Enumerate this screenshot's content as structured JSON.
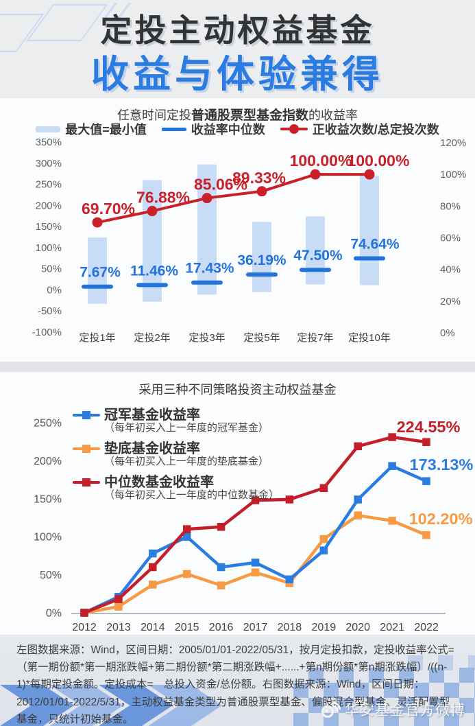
{
  "header": {
    "title_line1": "定投主动权益基金",
    "title_line2": "收益与体验兼得"
  },
  "chart_data": [
    {
      "type": "bar",
      "subtype": "range-bar + median tick + line (dual axis)",
      "title": "任意时间定投普通股票型基金指数的收益率",
      "title_parts": {
        "prefix": "任意时间定投",
        "bold": "普通股票型基金指数",
        "suffix": "的收益率"
      },
      "categories": [
        "定投1年",
        "定投2年",
        "定投3年",
        "定投5年",
        "定投7年",
        "定投10年"
      ],
      "left_axis": {
        "min": -100,
        "max": 350,
        "step": 50,
        "ticks": [
          "350%",
          "300%",
          "250%",
          "200%",
          "150%",
          "100%",
          "50%",
          "0%",
          "-50%",
          "-100%"
        ]
      },
      "right_axis": {
        "min": 0,
        "max": 120,
        "step": 20,
        "ticks": [
          "120%",
          "100%",
          "80%",
          "60%",
          "40%",
          "20%",
          "0%"
        ]
      },
      "series": [
        {
          "name": "最大值=最小值",
          "type": "range-bar",
          "axis": "left",
          "color": "#c9dcf5",
          "low": [
            -33,
            -28,
            -11,
            -5,
            13,
            11
          ],
          "high": [
            124,
            260,
            297,
            161,
            174,
            270
          ]
        },
        {
          "name": "收益率中位数",
          "type": "tick",
          "axis": "left",
          "color": "#2273dc",
          "values": [
            7.67,
            11.46,
            17.43,
            36.19,
            47.5,
            74.64
          ],
          "labels": [
            "7.67%",
            "11.46%",
            "17.43%",
            "36.19%",
            "47.50%",
            "74.64%"
          ]
        },
        {
          "name": "正收益次数/总定投次数",
          "type": "line",
          "axis": "right",
          "color": "#c9202a",
          "values": [
            69.7,
            76.88,
            85.06,
            89.33,
            100.0,
            100.0
          ],
          "labels": [
            "69.70%",
            "76.88%",
            "85.06%",
            "89.33%",
            "100.00%",
            "100.00%"
          ]
        }
      ]
    },
    {
      "type": "line",
      "title": "采用三种不同策略投资主动权益基金",
      "x": [
        "2012",
        "2013",
        "2014",
        "2015",
        "2016",
        "2017",
        "2018",
        "2019",
        "2020",
        "2021",
        "2022"
      ],
      "y_axis": {
        "min": 0,
        "max": 250,
        "step": 50,
        "ticks": [
          "0%",
          "50%",
          "100%",
          "150%",
          "200%",
          "250%"
        ]
      },
      "legend_position": "top-left overlay",
      "series": [
        {
          "name": "冠军基金收益率",
          "caption": "（每年初买入上一年度的冠军基金）",
          "color": "#2b7ce0",
          "values": [
            0,
            21,
            78,
            100,
            60,
            66,
            44,
            82,
            149,
            193,
            173.13
          ],
          "end_label": "173.13%"
        },
        {
          "name": "垫底基金收益率",
          "caption": "（每年初买入上一年度的垫底基金）",
          "color": "#f79a45",
          "values": [
            0,
            8,
            37,
            51,
            36,
            53,
            39,
            97,
            128,
            121,
            102.2
          ],
          "end_label": "102.20%"
        },
        {
          "name": "中位数基金收益率",
          "caption": "（每年初买入上一年度的中位数基金）",
          "color": "#c41e28",
          "values": [
            0,
            18,
            60,
            110,
            113,
            148,
            149,
            164,
            219,
            231,
            224.55
          ],
          "end_label": "224.55%"
        }
      ]
    }
  ],
  "footer": {
    "disclaimer": "左图数据来源：Wind，区间日期：2005/01/01-2022/05/31，按月定投扣款，定投收益率公式=（第一期份额*第一期涨跌幅+第二期份额*第二期涨跌幅+......+第n期份额*第n期涨跌幅）/((n-1)*每期定投金额。定投成本=　总投入资金/总份额。右图数据来源：Wind，区间日期：2012/01/01-2022/5/31，主动权益基金类型为普通股票型基金、偏股混合型基金、灵活配置型基金，只统计初始基金。",
    "watermark": "华安基金官方微博"
  }
}
